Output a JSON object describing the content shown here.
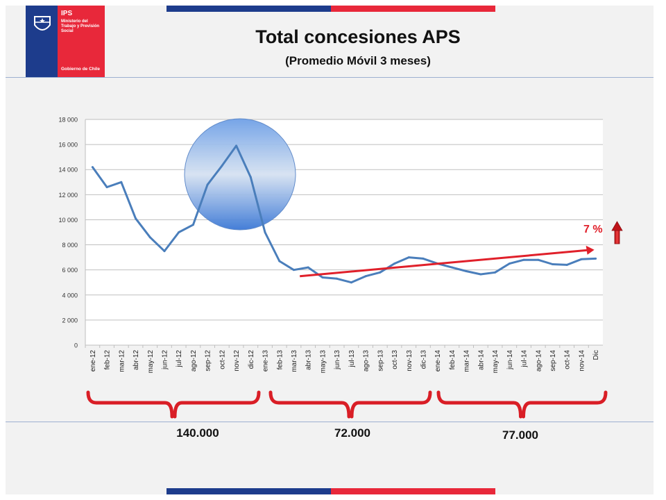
{
  "header": {
    "logo": {
      "abbr": "IPS",
      "name": "Ministerio del Trabajo y Previsión Social",
      "gov": "Gobierno de Chile"
    },
    "title": "Total concesiones APS",
    "subtitle": "(Promedio Móvil 3 meses)"
  },
  "colors": {
    "brand_blue": "#1d3c8c",
    "brand_red": "#e8283a",
    "series_line": "#4a7ebb",
    "trend_arrow": "#e0202a"
  },
  "annotations": {
    "growth_label": "7 %",
    "growth_icon": "up-arrow-icon",
    "highlight": "peak-highlight-circle",
    "totals": [
      {
        "period": "2012",
        "value": "140.000"
      },
      {
        "period": "2013",
        "value": "72.000"
      },
      {
        "period": "2014",
        "value": "77.000"
      }
    ]
  },
  "chart_data": {
    "type": "line",
    "title": "",
    "xlabel": "",
    "ylabel": "",
    "ylim": [
      0,
      18000
    ],
    "yticks": [
      0,
      2000,
      4000,
      6000,
      8000,
      10000,
      12000,
      14000,
      16000,
      18000
    ],
    "ytick_labels": [
      "0",
      "2 000",
      "4 000",
      "6 000",
      "8 000",
      "10 000",
      "12 000",
      "14 000",
      "16 000",
      "18 000"
    ],
    "grid": true,
    "categories": [
      "ene-12",
      "feb-12",
      "mar-12",
      "abr-12",
      "may-12",
      "jun-12",
      "jul-12",
      "ago-12",
      "sep-12",
      "oct-12",
      "nov-12",
      "dic-12",
      "ene-13",
      "feb-13",
      "mar-13",
      "abr-13",
      "may-13",
      "jun-13",
      "jul-13",
      "ago-13",
      "sep-13",
      "oct-13",
      "nov-13",
      "dic-13",
      "ene-14",
      "feb-14",
      "mar-14",
      "abr-14",
      "may-14",
      "jun-14",
      "jul-14",
      "ago-14",
      "sep-14",
      "oct-14",
      "nov-14",
      "Dic"
    ],
    "series": [
      {
        "values": [
          14200,
          12600,
          13000,
          10100,
          8600,
          7500,
          9000,
          9600,
          12800,
          14300,
          15900,
          13400,
          9000,
          6700,
          6000,
          6200,
          5400,
          5300,
          5000,
          5500,
          5800,
          6500,
          7000,
          6900,
          6500,
          6200,
          5900,
          5650,
          5800,
          6500,
          6800,
          6800,
          6450,
          6400,
          6850,
          6900
        ]
      }
    ],
    "trend": {
      "from_category": "abr-13",
      "to_category": "Dic",
      "from_value": 5500,
      "to_value": 7600
    }
  }
}
